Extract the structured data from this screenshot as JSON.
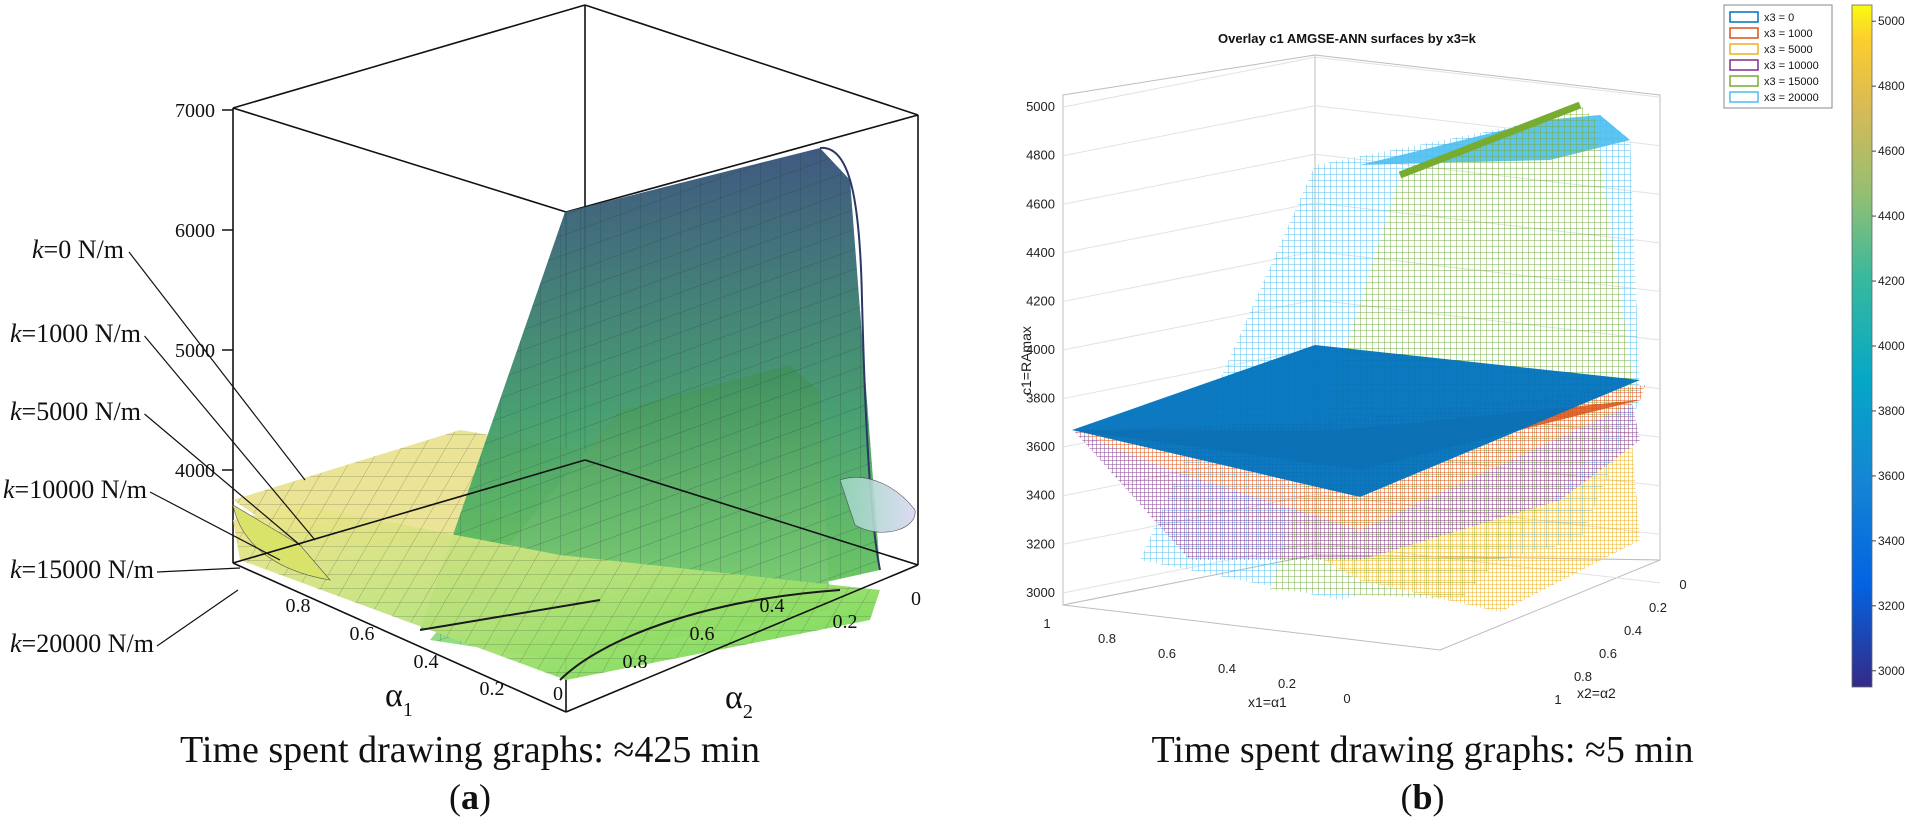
{
  "panel_a": {
    "caption": "Time spent drawing graphs: ≈425 min",
    "label": "a",
    "label_open": "(",
    "label_close": ")",
    "z_ticks": [
      "7000",
      "6000",
      "5000",
      "4000"
    ],
    "a1_ticks": [
      "0.8",
      "0.6",
      "0.4",
      "0.2",
      "0"
    ],
    "a2_ticks": [
      "0.8",
      "0.6",
      "0.4",
      "0.2",
      "0"
    ],
    "x_axis_label": "α",
    "x_axis_sub": "1",
    "y_axis_label": "α",
    "y_axis_sub": "2",
    "k_labels": [
      {
        "italic": "k",
        "rest": "=0 N/m"
      },
      {
        "italic": "k",
        "rest": "=1000 N/m"
      },
      {
        "italic": "k",
        "rest": "=5000 N/m"
      },
      {
        "italic": "k",
        "rest": "=10000 N/m"
      },
      {
        "italic": "k",
        "rest": "=15000 N/m"
      },
      {
        "italic": "k",
        "rest": "=20000 N/m"
      }
    ]
  },
  "panel_b": {
    "caption": "Time spent drawing graphs: ≈5 min",
    "label": "b",
    "label_open": "(",
    "label_close": ")",
    "title": "Overlay c1 AMGSE-ANN surfaces by x3=k",
    "z_label": "c1=RAmax",
    "x1_label": "x1=α1",
    "x2_label": "x2=α2",
    "z_ticks": [
      "5000",
      "4800",
      "4600",
      "4400",
      "4200",
      "4000",
      "3800",
      "3600",
      "3400",
      "3200",
      "3000"
    ],
    "x1_ticks": [
      "1",
      "0.8",
      "0.6",
      "0.4",
      "0.2",
      "0"
    ],
    "x2_ticks": [
      "0",
      "0.2",
      "0.4",
      "0.6",
      "0.8",
      "1"
    ],
    "legend": [
      {
        "label": "x3 = 0",
        "color": "#0072BD"
      },
      {
        "label": "x3 = 1000",
        "color": "#D95319"
      },
      {
        "label": "x3 = 5000",
        "color": "#EDB120"
      },
      {
        "label": "x3 = 10000",
        "color": "#7E2F8E"
      },
      {
        "label": "x3 = 15000",
        "color": "#77AC30"
      },
      {
        "label": "x3 = 20000",
        "color": "#4DBEEE"
      }
    ],
    "colorbar_ticks": [
      "5000",
      "4800",
      "4600",
      "4400",
      "4200",
      "4000",
      "3800",
      "3600",
      "3400",
      "3200",
      "3000"
    ]
  },
  "chart_data": [
    {
      "type": "surface",
      "panel": "a",
      "zlim": [
        3000,
        7000
      ],
      "xlim": [
        0,
        1
      ],
      "ylim": [
        0,
        1
      ],
      "z_ticks": [
        4000,
        5000,
        6000,
        7000
      ],
      "series": [
        {
          "name": "k=0 N/m",
          "peak": 6600,
          "base": 3750
        },
        {
          "name": "k=1000 N/m",
          "peak": 5000,
          "base": 3650
        },
        {
          "name": "k=5000 N/m",
          "peak": 4500,
          "base": 3550
        },
        {
          "name": "k=10000 N/m",
          "peak": 4200,
          "base": 3450
        },
        {
          "name": "k=15000 N/m",
          "peak": 4000,
          "base": 3350
        },
        {
          "name": "k=20000 N/m",
          "peak": 3800,
          "base": 3250
        }
      ]
    },
    {
      "type": "surface",
      "panel": "b",
      "title": "Overlay c1 AMGSE-ANN surfaces by x3=k",
      "zlabel": "c1=RAmax",
      "xlabel": "x1=α1",
      "ylabel": "x2=α2",
      "zlim": [
        2950,
        5050
      ],
      "xlim": [
        0,
        1
      ],
      "ylim": [
        0,
        1
      ],
      "colorbar_range": [
        2950,
        5050
      ],
      "series": [
        {
          "name": "x3 = 0",
          "level": 3950
        },
        {
          "name": "x3 = 1000",
          "level": 3750
        },
        {
          "name": "x3 = 5000",
          "level": 3050
        },
        {
          "name": "x3 = 10000",
          "level": 3150
        },
        {
          "name": "x3 = 15000",
          "peak": 5050
        },
        {
          "name": "x3 = 20000",
          "peak": 5000
        }
      ]
    }
  ]
}
